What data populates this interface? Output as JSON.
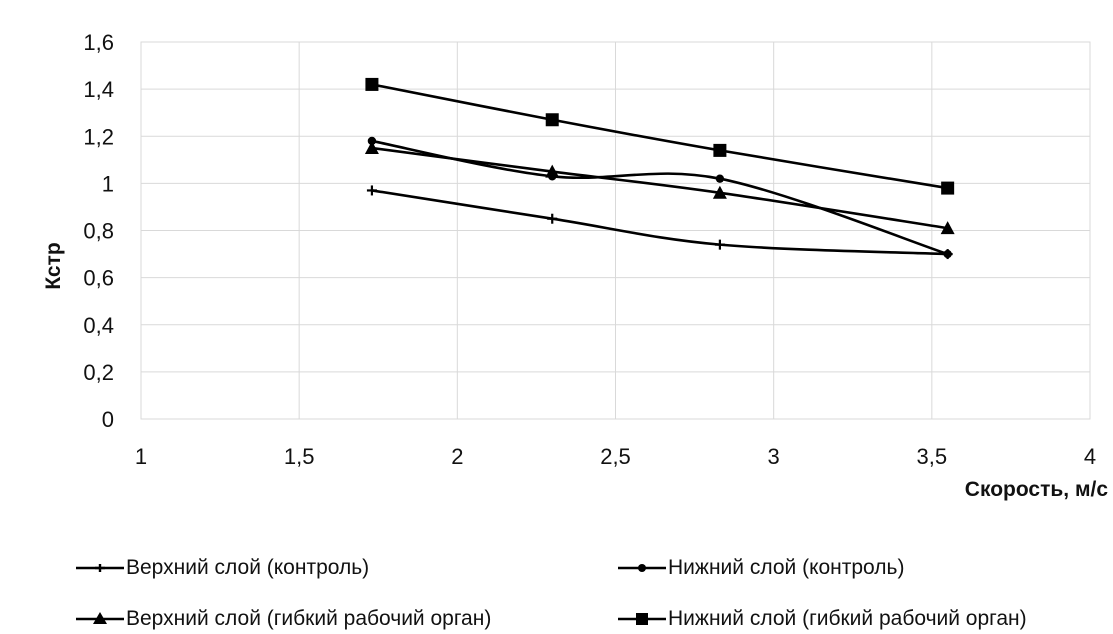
{
  "chart_data": {
    "type": "line",
    "title": "",
    "xlabel": "Скорость, м/с",
    "ylabel": "Кстр",
    "xlim": [
      1,
      4
    ],
    "ylim": [
      0,
      1.6
    ],
    "x_ticks": [
      "1",
      "1,5",
      "2",
      "2,5",
      "3",
      "3,5",
      "4"
    ],
    "y_ticks": [
      "0",
      "0,2",
      "0,4",
      "0,6",
      "0,8",
      "1",
      "1,2",
      "1,4",
      "1,6"
    ],
    "grid": true,
    "legend_position": "bottom",
    "series": [
      {
        "name": "Верхний слой (контроль)",
        "marker": "plus",
        "color": "#000000",
        "points": [
          [
            1.73,
            0.97
          ],
          [
            2.3,
            0.85
          ],
          [
            2.83,
            0.74
          ],
          [
            3.55,
            0.7
          ]
        ]
      },
      {
        "name": "Нижний слой (контроль)",
        "marker": "dot",
        "color": "#000000",
        "points": [
          [
            1.73,
            1.18
          ],
          [
            2.3,
            1.03
          ],
          [
            2.83,
            1.02
          ],
          [
            3.55,
            0.7
          ]
        ]
      },
      {
        "name": "Верхний слой (гибкий рабочий орган)",
        "marker": "triangle",
        "color": "#000000",
        "points": [
          [
            1.73,
            1.15
          ],
          [
            2.3,
            1.05
          ],
          [
            2.83,
            0.96
          ],
          [
            3.55,
            0.81
          ]
        ]
      },
      {
        "name": "Нижний слой (гибкий рабочий орган)",
        "marker": "square",
        "color": "#000000",
        "points": [
          [
            1.73,
            1.42
          ],
          [
            2.3,
            1.27
          ],
          [
            2.83,
            1.14
          ],
          [
            3.55,
            0.98
          ]
        ]
      }
    ]
  }
}
